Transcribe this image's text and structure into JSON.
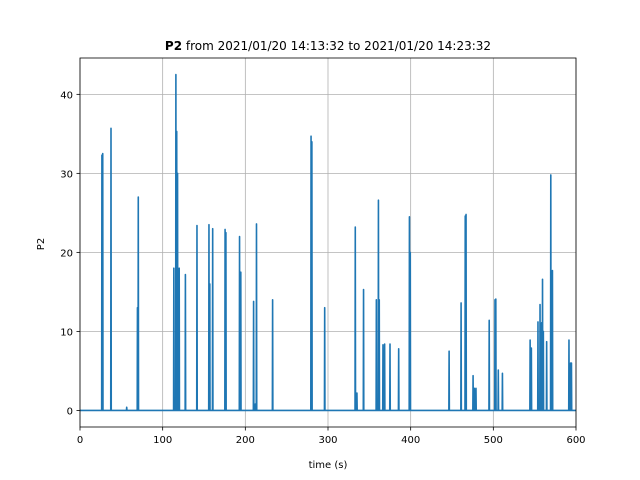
{
  "chart_data": {
    "type": "line",
    "title_bold": "P2",
    "title_rest": " from 2021/01/20 14:13:32 to 2021/01/20 14:23:32",
    "xlabel": "time (s)",
    "ylabel": "P2",
    "xlim": [
      0,
      600
    ],
    "ylim": [
      -2.1,
      44.6
    ],
    "x_ticks": [
      0,
      100,
      200,
      300,
      400,
      500,
      600
    ],
    "y_ticks": [
      0,
      10,
      20,
      30,
      40
    ],
    "grid": true,
    "line_color": "#1f77b4",
    "series": [
      {
        "spikes": [
          [
            26.5,
            32.3
          ],
          [
            27.5,
            32.5
          ],
          [
            37.5,
            35.7
          ],
          [
            56.5,
            0.4
          ],
          [
            69.5,
            13.0
          ],
          [
            70.5,
            27.0
          ],
          [
            113.5,
            18.0
          ],
          [
            116.0,
            42.5
          ],
          [
            117.0,
            35.3
          ],
          [
            118.0,
            30.0
          ],
          [
            119.0,
            4.0
          ],
          [
            120.0,
            18.0
          ],
          [
            127.5,
            17.2
          ],
          [
            141.5,
            23.4
          ],
          [
            156.0,
            23.5
          ],
          [
            157.0,
            16.0
          ],
          [
            160.5,
            23.0
          ],
          [
            175.5,
            22.9
          ],
          [
            176.5,
            22.5
          ],
          [
            193.0,
            22.0
          ],
          [
            194.5,
            17.5
          ],
          [
            210.0,
            13.8
          ],
          [
            212.0,
            0.8
          ],
          [
            213.5,
            23.6
          ],
          [
            233.0,
            14.0
          ],
          [
            279.5,
            34.7
          ],
          [
            280.5,
            34.0
          ],
          [
            296.0,
            13.0
          ],
          [
            333.0,
            23.2
          ],
          [
            335.0,
            2.2
          ],
          [
            343.0,
            15.3
          ],
          [
            358.5,
            14.0
          ],
          [
            361.0,
            26.6
          ],
          [
            362.0,
            14.0
          ],
          [
            366.5,
            8.3
          ],
          [
            368.5,
            8.4
          ],
          [
            375.0,
            8.4
          ],
          [
            385.5,
            7.8
          ],
          [
            398.5,
            24.5
          ],
          [
            399.5,
            20.0
          ],
          [
            446.5,
            7.5
          ],
          [
            461.0,
            13.6
          ],
          [
            466.0,
            24.6
          ],
          [
            467.0,
            24.8
          ],
          [
            475.5,
            4.4
          ],
          [
            477.0,
            2.8
          ],
          [
            479.0,
            2.8
          ],
          [
            495.0,
            11.4
          ],
          [
            502.0,
            14.0
          ],
          [
            503.0,
            14.1
          ],
          [
            506.0,
            5.1
          ],
          [
            511.0,
            4.7
          ],
          [
            544.5,
            8.9
          ],
          [
            546.0,
            7.9
          ],
          [
            554.0,
            11.2
          ],
          [
            556.5,
            13.4
          ],
          [
            558.5,
            11.1
          ],
          [
            559.5,
            16.6
          ],
          [
            560.5,
            10.0
          ],
          [
            564.5,
            8.7
          ],
          [
            569.5,
            29.8
          ],
          [
            570.5,
            17.0
          ],
          [
            571.5,
            17.7
          ],
          [
            591.5,
            8.9
          ],
          [
            593.5,
            6.0
          ],
          [
            594.5,
            6.0
          ]
        ]
      }
    ]
  }
}
